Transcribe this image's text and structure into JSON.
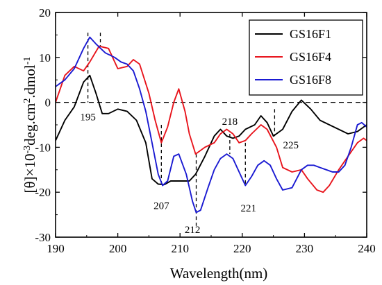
{
  "chart_data": {
    "type": "line",
    "xlabel": "Wavelength(nm)",
    "ylabel_parts": [
      "[θ]×10",
      "-3",
      "deg.cm",
      "2",
      ".dmol",
      "-1"
    ],
    "xlim": [
      190,
      240
    ],
    "ylim": [
      -30,
      20
    ],
    "xticks": [
      190,
      200,
      210,
      220,
      230,
      240
    ],
    "yticks": [
      -30,
      -20,
      -10,
      0,
      10,
      20
    ],
    "grid": false,
    "legend_position": "top-right",
    "zero_line": "dashed",
    "series": [
      {
        "name": "GS16F1",
        "color": "#000000",
        "points": [
          [
            190,
            -8.5
          ],
          [
            191.5,
            -4
          ],
          [
            193,
            -1
          ],
          [
            194.5,
            4.5
          ],
          [
            195.5,
            6
          ],
          [
            196.5,
            2
          ],
          [
            197.5,
            -2.5
          ],
          [
            198.5,
            -2.5
          ],
          [
            200,
            -1.5
          ],
          [
            201.5,
            -2
          ],
          [
            203,
            -4
          ],
          [
            204.5,
            -9
          ],
          [
            205.5,
            -17
          ],
          [
            206.5,
            -18.2
          ],
          [
            207.5,
            -18.3
          ],
          [
            208.5,
            -17.5
          ],
          [
            210,
            -17.5
          ],
          [
            211.5,
            -17.5
          ],
          [
            212.5,
            -16
          ],
          [
            214,
            -12
          ],
          [
            215.5,
            -7.5
          ],
          [
            216.5,
            -6
          ],
          [
            217.5,
            -7.5
          ],
          [
            218.5,
            -8
          ],
          [
            219.5,
            -7.5
          ],
          [
            220.5,
            -6
          ],
          [
            222,
            -5
          ],
          [
            223,
            -3
          ],
          [
            224,
            -4.5
          ],
          [
            225,
            -7.5
          ],
          [
            226.5,
            -6
          ],
          [
            228,
            -2
          ],
          [
            229.5,
            0.5
          ],
          [
            231,
            -1.5
          ],
          [
            232.5,
            -4
          ],
          [
            234,
            -5
          ],
          [
            235.5,
            -6
          ],
          [
            237,
            -7
          ],
          [
            238.5,
            -6.5
          ],
          [
            240,
            -5
          ]
        ]
      },
      {
        "name": "GS16F4",
        "color": "#e8141c",
        "points": [
          [
            190,
            0
          ],
          [
            191.5,
            6
          ],
          [
            193,
            8
          ],
          [
            194.5,
            7
          ],
          [
            195.5,
            9
          ],
          [
            197,
            12.5
          ],
          [
            198.5,
            12
          ],
          [
            200,
            7.5
          ],
          [
            201.5,
            8
          ],
          [
            202.5,
            9.5
          ],
          [
            203.5,
            8.5
          ],
          [
            205,
            2
          ],
          [
            206,
            -4
          ],
          [
            207,
            -9
          ],
          [
            208,
            -5.5
          ],
          [
            209,
            0
          ],
          [
            209.8,
            3
          ],
          [
            210.8,
            -2
          ],
          [
            211.5,
            -7
          ],
          [
            212.5,
            -11.5
          ],
          [
            214,
            -10
          ],
          [
            215.5,
            -9
          ],
          [
            216.5,
            -7
          ],
          [
            217.5,
            -6
          ],
          [
            218.5,
            -7
          ],
          [
            219.5,
            -9
          ],
          [
            220.5,
            -8.5
          ],
          [
            221.5,
            -7
          ],
          [
            223,
            -5
          ],
          [
            224,
            -6
          ],
          [
            225.5,
            -10
          ],
          [
            226.5,
            -14.5
          ],
          [
            228,
            -15.5
          ],
          [
            229.5,
            -15
          ],
          [
            230.5,
            -17
          ],
          [
            232,
            -19.5
          ],
          [
            233,
            -20
          ],
          [
            234,
            -18.5
          ],
          [
            235.5,
            -15
          ],
          [
            237,
            -12
          ],
          [
            238.5,
            -9
          ],
          [
            239.5,
            -8
          ],
          [
            240,
            -8.5
          ]
        ]
      },
      {
        "name": "GS16F8",
        "color": "#1a1ad2",
        "points": [
          [
            190,
            3.5
          ],
          [
            191.5,
            5
          ],
          [
            193,
            7.5
          ],
          [
            194.5,
            12
          ],
          [
            195.5,
            14.5
          ],
          [
            196.5,
            13
          ],
          [
            198,
            11
          ],
          [
            199.5,
            10
          ],
          [
            200.5,
            9
          ],
          [
            201.5,
            8.5
          ],
          [
            202.5,
            7
          ],
          [
            203.5,
            3
          ],
          [
            204.5,
            -2
          ],
          [
            205.5,
            -9
          ],
          [
            206.5,
            -16
          ],
          [
            207.2,
            -18.5
          ],
          [
            208,
            -17.5
          ],
          [
            209,
            -12
          ],
          [
            209.8,
            -11.5
          ],
          [
            211,
            -16
          ],
          [
            212,
            -22
          ],
          [
            212.6,
            -24.5
          ],
          [
            213.3,
            -24
          ],
          [
            214.5,
            -19
          ],
          [
            215.5,
            -15
          ],
          [
            216.5,
            -12.5
          ],
          [
            217.5,
            -11.5
          ],
          [
            218.5,
            -12.5
          ],
          [
            219.5,
            -15.5
          ],
          [
            220.5,
            -18.5
          ],
          [
            221.5,
            -16.5
          ],
          [
            222.5,
            -14
          ],
          [
            223.5,
            -13
          ],
          [
            224.5,
            -14
          ],
          [
            225.5,
            -17
          ],
          [
            226.5,
            -19.5
          ],
          [
            228,
            -19
          ],
          [
            229.5,
            -15
          ],
          [
            230.5,
            -14
          ],
          [
            231.5,
            -14
          ],
          [
            232.5,
            -14.5
          ],
          [
            233.5,
            -15
          ],
          [
            234.5,
            -15.5
          ],
          [
            235.5,
            -15.5
          ],
          [
            236.5,
            -14
          ],
          [
            237.5,
            -10
          ],
          [
            238.5,
            -5
          ],
          [
            239.2,
            -4.5
          ],
          [
            240,
            -5.5
          ]
        ]
      }
    ],
    "annotations": [
      {
        "label": "195",
        "x": 195.2,
        "y1": 15.5,
        "y2": 0,
        "label_x": 195.2,
        "label_y": -3.2
      },
      {
        "label": "",
        "x": 197.2,
        "y1": 15.5,
        "y2": 12.5,
        "label_x": null,
        "label_y": null
      },
      {
        "label": "207",
        "x": 207,
        "y1": -5,
        "y2": -18.5,
        "label_x": 207,
        "label_y": -23
      },
      {
        "label": "212",
        "x": 212.6,
        "y1": -11.5,
        "y2": -27.5,
        "label_x": 212,
        "label_y": -28.3
      },
      {
        "label": "218",
        "x": 218,
        "y1": -7,
        "y2": -11.5,
        "label_x": 218,
        "label_y": -4.2
      },
      {
        "label": "221",
        "x": 220.5,
        "y1": -9,
        "y2": -18.5,
        "label_x": 221,
        "label_y": -23.5
      },
      {
        "label": "225",
        "x": 225.2,
        "y1": -1.5,
        "y2": -7.5,
        "label_x": 227.8,
        "label_y": -9.5
      }
    ]
  }
}
